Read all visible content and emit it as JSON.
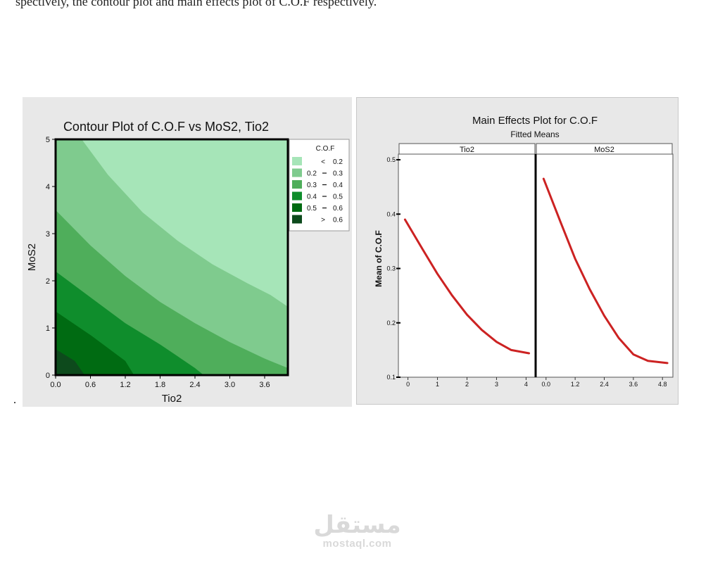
{
  "page_text": "spectively, the contour plot and main effects plot of C.O.F respectively.",
  "page_marker": ".",
  "watermark": {
    "logo": "مستقل",
    "site": "mostaql.com"
  },
  "chart_data": [
    {
      "type": "heatmap",
      "title": "Contour Plot of C.O.F vs MoS2, Tio2",
      "xlabel": "Tio2",
      "ylabel": "MoS2",
      "xlim": [
        0,
        4
      ],
      "ylim": [
        0,
        5
      ],
      "x_ticks": [
        "0.0",
        "0.6",
        "1.2",
        "1.8",
        "2.4",
        "3.0",
        "3.6"
      ],
      "x_tick_values": [
        0,
        0.6,
        1.2,
        1.8,
        2.4,
        3.0,
        3.6
      ],
      "y_ticks": [
        "0",
        "1",
        "2",
        "3",
        "4",
        "5"
      ],
      "y_tick_values": [
        0,
        1,
        2,
        3,
        4,
        5
      ],
      "legend": {
        "title": "C.O.F",
        "placement": "right",
        "entries": [
          {
            "label_lo": "<",
            "label_hi": "0.2",
            "color": "#a6e5b8"
          },
          {
            "label_lo": "0.2",
            "label_hi": "0.3",
            "color": "#7fcb8e"
          },
          {
            "label_lo": "0.3",
            "label_hi": "0.4",
            "color": "#4fae5b"
          },
          {
            "label_lo": "0.4",
            "label_hi": "0.5",
            "color": "#0f8d2c"
          },
          {
            "label_lo": "0.5",
            "label_hi": "0.6",
            "color": "#006b12"
          },
          {
            "label_lo": ">",
            "label_hi": "0.6",
            "color": "#0d4a1c"
          }
        ]
      },
      "contour_boundaries": [
        {
          "level": 0.6,
          "points": [
            [
              0,
              0.55
            ],
            [
              0.33,
              0.3
            ],
            [
              0.5,
              0
            ]
          ]
        },
        {
          "level": 0.5,
          "points": [
            [
              0,
              1.35
            ],
            [
              0.6,
              0.85
            ],
            [
              1.2,
              0.3
            ],
            [
              1.35,
              0
            ]
          ]
        },
        {
          "level": 0.4,
          "points": [
            [
              0,
              2.2
            ],
            [
              0.6,
              1.65
            ],
            [
              1.2,
              1.1
            ],
            [
              1.8,
              0.65
            ],
            [
              2.4,
              0.15
            ],
            [
              2.55,
              0
            ]
          ]
        },
        {
          "level": 0.3,
          "points": [
            [
              0,
              3.5
            ],
            [
              0.6,
              2.75
            ],
            [
              1.2,
              2.1
            ],
            [
              1.8,
              1.55
            ],
            [
              2.4,
              1.1
            ],
            [
              3.0,
              0.7
            ],
            [
              3.6,
              0.35
            ],
            [
              4,
              0.15
            ]
          ]
        },
        {
          "level": 0.2,
          "points": [
            [
              0.45,
              5
            ],
            [
              0.9,
              4.25
            ],
            [
              1.5,
              3.45
            ],
            [
              2.1,
              2.85
            ],
            [
              2.7,
              2.35
            ],
            [
              3.3,
              1.95
            ],
            [
              3.7,
              1.7
            ],
            [
              4,
              1.45
            ]
          ]
        }
      ]
    },
    {
      "type": "line",
      "title": "Main Effects Plot for C.O.F",
      "subtitle": "Fitted Means",
      "ylabel": "Mean of C.O.F",
      "ylim": [
        0.1,
        0.5
      ],
      "y_ticks": [
        "0.1",
        "0.2",
        "0.3",
        "0.4",
        "0.5"
      ],
      "y_tick_values": [
        0.1,
        0.2,
        0.3,
        0.4,
        0.5
      ],
      "line_color": "#cc2222",
      "panels": [
        {
          "name": "Tio2",
          "xlim": [
            -0.3,
            4.3
          ],
          "x_ticks": [
            "0",
            "1",
            "2",
            "3",
            "4"
          ],
          "x_tick_values": [
            0,
            1,
            2,
            3,
            4
          ],
          "x": [
            -0.1,
            0.5,
            1,
            1.5,
            2,
            2.5,
            3,
            3.5,
            4.1
          ],
          "y": [
            0.39,
            0.335,
            0.29,
            0.25,
            0.215,
            0.187,
            0.165,
            0.15,
            0.144
          ]
        },
        {
          "name": "MoS2",
          "xlim": [
            -0.4,
            5.2
          ],
          "x_ticks": [
            "0.0",
            "1.2",
            "2.4",
            "3.6",
            "4.8"
          ],
          "x_tick_values": [
            0,
            1.2,
            2.4,
            3.6,
            4.8
          ],
          "x": [
            -0.1,
            0.6,
            1.2,
            1.8,
            2.4,
            3.0,
            3.6,
            4.2,
            5.0
          ],
          "y": [
            0.465,
            0.385,
            0.318,
            0.262,
            0.213,
            0.172,
            0.142,
            0.13,
            0.126
          ]
        }
      ]
    }
  ]
}
